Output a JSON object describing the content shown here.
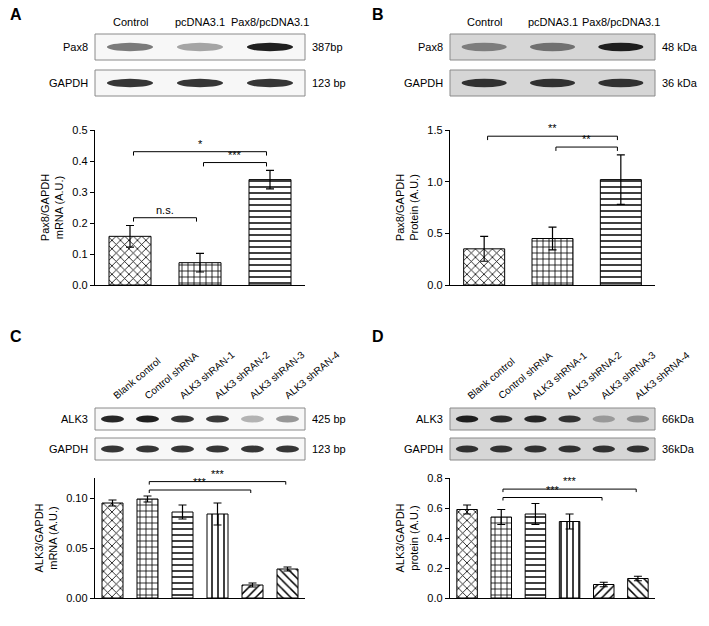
{
  "chart_data": [
    {
      "type": "bar",
      "title": "A",
      "categories": [
        "Control",
        "pcDNA3.1",
        "Pax8/pcDNA3.1"
      ],
      "values": [
        0.157,
        0.072,
        0.34
      ],
      "errors": [
        0.035,
        0.03,
        0.03
      ],
      "y_label": "Pax8/GAPDH\nmRNA (A.U.)",
      "ylim": [
        0,
        0.5
      ],
      "yticks": [
        {
          "value": 0,
          "label": "0.0"
        },
        0.1,
        0.2,
        0.3,
        0.4,
        0.5
      ],
      "color": "#000000",
      "grid": false,
      "tick_labels": "y",
      "gel": {
        "rows": [
          {
            "label": "Pax8",
            "size": "387bp"
          },
          {
            "label": "GAPDH",
            "size": "123 bp"
          }
        ]
      },
      "significance": [
        {
          "from": "Control",
          "to": "pcDNA3.1",
          "text": "n.s."
        },
        {
          "from": "pcDNA3.1",
          "to": "Pax8/pcDNA3.1",
          "text": "***"
        },
        {
          "from": "Control",
          "to": "Pax8/pcDNA3.1",
          "text": "*"
        }
      ]
    },
    {
      "type": "bar",
      "title": "B",
      "categories": [
        "Control",
        "pcDNA3.1",
        "Pax8/pcDNA3.1"
      ],
      "values": [
        0.35,
        0.45,
        1.02
      ],
      "errors": [
        0.12,
        0.11,
        0.24
      ],
      "y_label": "Pax8/GAPDH\nProtein (A.U.)",
      "ylim": [
        0,
        1.5
      ],
      "yticks": [
        {
          "value": 0,
          "label": "0.0"
        },
        0.5,
        {
          "value": 1,
          "label": "1.0"
        },
        1.5
      ],
      "color": "#000000",
      "grid": false,
      "tick_labels": "y",
      "gel": {
        "rows": [
          {
            "label": "Pax8",
            "size": "48 kDa"
          },
          {
            "label": "GAPDH",
            "size": "36 kDa"
          }
        ]
      },
      "significance": [
        {
          "from": "pcDNA3.1",
          "to": "Pax8/pcDNA3.1",
          "text": "**"
        },
        {
          "from": "Control",
          "to": "Pax8/pcDNA3.1",
          "text": "**"
        }
      ]
    },
    {
      "type": "bar",
      "title": "C",
      "categories": [
        "Blank control",
        "Control shRNA",
        "ALK3 shRAN-1",
        "ALK3 shRAN-2",
        "ALK3 shRAN-3",
        "ALK3 shRAN-4"
      ],
      "values": [
        0.095,
        0.099,
        0.086,
        0.084,
        0.013,
        0.029
      ],
      "errors": [
        0.003,
        0.003,
        0.007,
        0.011,
        0.002,
        0.002
      ],
      "y_label": "ALK3/GAPDH\nmRNA (A.U.)",
      "ylim": [
        0,
        0.12
      ],
      "yticks": [
        {
          "value": 0,
          "label": "0.00"
        },
        0.05,
        {
          "value": 0.1,
          "label": "0.10"
        }
      ],
      "color": "#000000",
      "grid": false,
      "tick_labels": "y",
      "gel": {
        "rows": [
          {
            "label": "ALK3",
            "size": "425 bp"
          },
          {
            "label": "GAPDH",
            "size": "123 bp"
          }
        ]
      },
      "significance": [
        {
          "from": "Control shRNA",
          "to": "ALK3 shRAN-3",
          "text": "***"
        },
        {
          "from": "Control shRNA",
          "to": "ALK3 shRAN-4",
          "text": "***"
        }
      ]
    },
    {
      "type": "bar",
      "title": "D",
      "categories": [
        "Blank control",
        "Control shRNA",
        "ALK3 shRNA-1",
        "ALK3 shRNA-2",
        "ALK3 shRNA-3",
        "ALK3 shRNA-4"
      ],
      "values": [
        0.59,
        0.54,
        0.56,
        0.51,
        0.09,
        0.13
      ],
      "errors": [
        0.03,
        0.05,
        0.07,
        0.05,
        0.015,
        0.015
      ],
      "y_label": "ALK3/GAPDH\nprotein (A.U.)",
      "ylim": [
        0,
        0.8
      ],
      "yticks": [
        {
          "value": 0,
          "label": "0.0"
        },
        0.2,
        0.4,
        0.6,
        0.8
      ],
      "color": "#000000",
      "grid": false,
      "tick_labels": "y",
      "gel": {
        "rows": [
          {
            "label": "ALK3",
            "size": "66kDa"
          },
          {
            "label": "GAPDH",
            "size": "36kDa"
          }
        ]
      },
      "significance": [
        {
          "from": "Control shRNA",
          "to": "ALK3 shRNA-3",
          "text": "***"
        },
        {
          "from": "Control shRNA",
          "to": "ALK3 shRNA-4",
          "text": "***"
        }
      ]
    }
  ]
}
